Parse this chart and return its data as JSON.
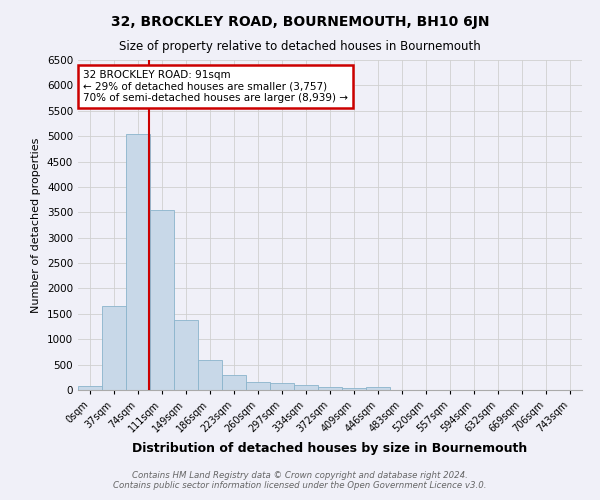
{
  "title": "32, BROCKLEY ROAD, BOURNEMOUTH, BH10 6JN",
  "subtitle": "Size of property relative to detached houses in Bournemouth",
  "xlabel": "Distribution of detached houses by size in Bournemouth",
  "ylabel": "Number of detached properties",
  "bar_color": "#c8d8e8",
  "bar_edge_color": "#8ab4cc",
  "bin_labels": [
    "0sqm",
    "37sqm",
    "74sqm",
    "111sqm",
    "149sqm",
    "186sqm",
    "223sqm",
    "260sqm",
    "297sqm",
    "334sqm",
    "372sqm",
    "409sqm",
    "446sqm",
    "483sqm",
    "520sqm",
    "557sqm",
    "594sqm",
    "632sqm",
    "669sqm",
    "706sqm",
    "743sqm"
  ],
  "bin_values": [
    80,
    1650,
    5050,
    3550,
    1380,
    590,
    300,
    160,
    135,
    90,
    50,
    40,
    60,
    0,
    0,
    0,
    0,
    0,
    0,
    0,
    0
  ],
  "property_label": "32 BROCKLEY ROAD: 91sqm",
  "annotation_line1": "← 29% of detached houses are smaller (3,757)",
  "annotation_line2": "70% of semi-detached houses are larger (8,939) →",
  "ylim": [
    0,
    6500
  ],
  "yticks": [
    0,
    500,
    1000,
    1500,
    2000,
    2500,
    3000,
    3500,
    4000,
    4500,
    5000,
    5500,
    6000,
    6500
  ],
  "footer1": "Contains HM Land Registry data © Crown copyright and database right 2024.",
  "footer2": "Contains public sector information licensed under the Open Government Licence v3.0.",
  "grid_color": "#d0d0d0",
  "background_color": "#f0f0f8",
  "red_line_x": 2.46
}
